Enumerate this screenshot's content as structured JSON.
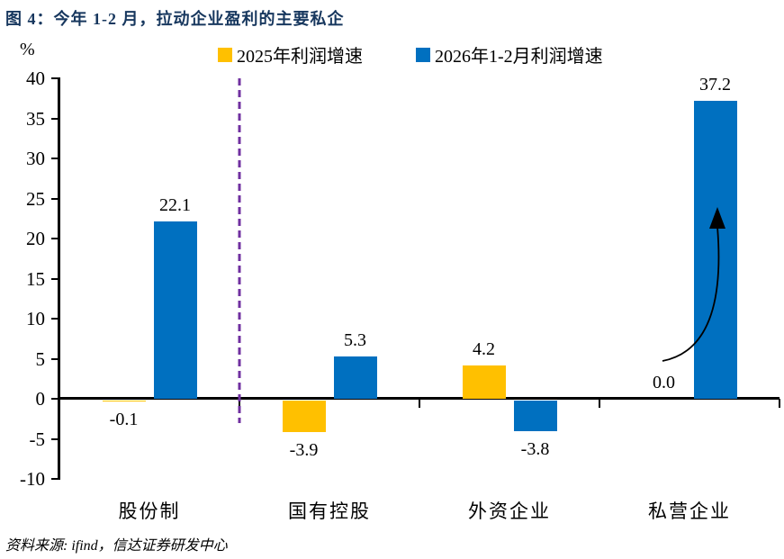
{
  "title": "图 4：今年 1-2 月，拉动企业盈利的主要私企",
  "y_axis_unit": "%",
  "source": "资料来源: ifind，信达证券研发中心",
  "colors": {
    "title_navy": "#17375E",
    "bar_2025_yellow": "#FFC000",
    "bar_2026_blue": "#0070C0",
    "divider_purple": "#7030A0"
  },
  "chart_data": {
    "type": "bar",
    "categories": [
      "股份制",
      "国有控股",
      "外资企业",
      "私营企业"
    ],
    "series": [
      {
        "name": "2025年利润增速",
        "color": "#FFC000",
        "values": [
          -0.1,
          -3.9,
          4.2,
          0.0
        ]
      },
      {
        "name": "2026年1-2月利润增速",
        "color": "#0070C0",
        "values": [
          22.1,
          5.3,
          -3.8,
          37.2
        ]
      }
    ],
    "ylabel": "%",
    "ylim": [
      -10,
      40
    ],
    "y_ticks": [
      40,
      35,
      30,
      25,
      20,
      15,
      10,
      5,
      0,
      -5,
      -10
    ],
    "grid": false,
    "legend_position": "top",
    "annotations": [
      {
        "type": "vline",
        "style": "dashed",
        "color": "#7030A0",
        "after_category": "股份制"
      },
      {
        "type": "curved-arrow",
        "color": "#000000",
        "from_label": "0.0",
        "to": "top of 私营企业 blue bar"
      }
    ]
  }
}
